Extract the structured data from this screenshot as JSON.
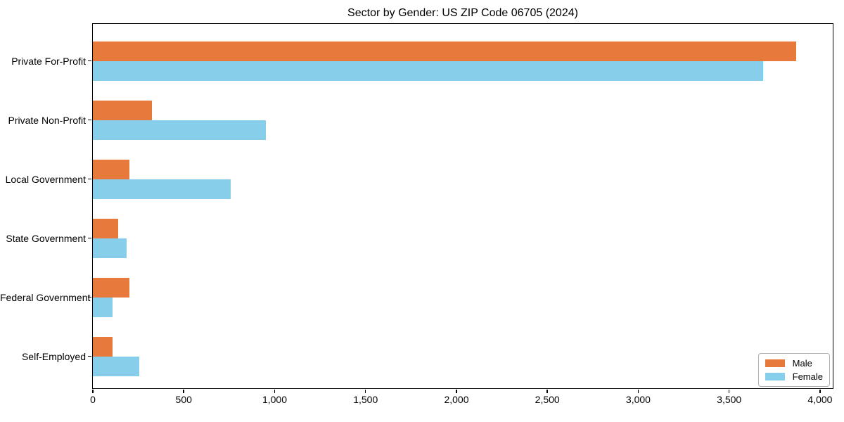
{
  "chart_data": {
    "type": "bar",
    "orientation": "horizontal",
    "title": "Sector by Gender: US ZIP Code 06705 (2024)",
    "xlabel": "",
    "ylabel": "",
    "categories": [
      "Private For-Profit",
      "Private Non-Profit",
      "Local Government",
      "State Government",
      "Federal Government",
      "Self-Employed"
    ],
    "series": [
      {
        "name": "Male",
        "color": "#E8793C",
        "values": [
          3870,
          325,
          200,
          140,
          200,
          110
        ]
      },
      {
        "name": "Female",
        "color": "#87CEEB",
        "values": [
          3685,
          950,
          760,
          185,
          110,
          255
        ]
      }
    ],
    "xlim": [
      0,
      4066
    ],
    "xticks": {
      "values": [
        0,
        500,
        1000,
        1500,
        2000,
        2500,
        3000,
        3500,
        4000
      ],
      "labels": [
        "0",
        "500",
        "1,000",
        "1,500",
        "2,000",
        "2,500",
        "3,000",
        "3,500",
        "4,000"
      ]
    },
    "grid": false,
    "legend": {
      "position": "lower right",
      "entries": [
        "Male",
        "Female"
      ]
    }
  },
  "colors": {
    "spine": "#000000",
    "background": "#ffffff",
    "legend_border": "#b0b0b0",
    "male": "#E8793C",
    "female": "#87CEEB"
  }
}
